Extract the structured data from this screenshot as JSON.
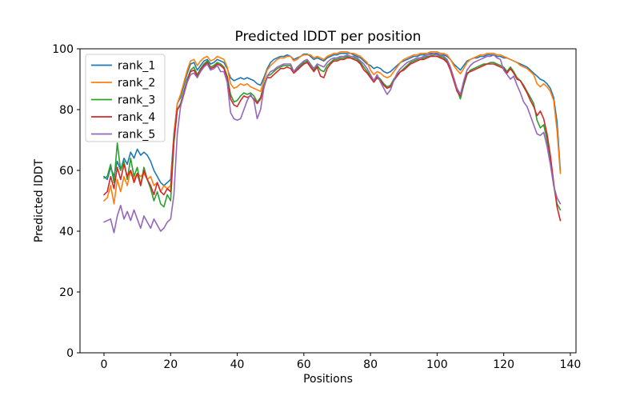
{
  "chart_data": {
    "type": "line",
    "title": "Predicted lDDT per position",
    "xlabel": "Positions",
    "ylabel": "Predicted lDDT",
    "xlim": [
      -7.2,
      141.7
    ],
    "ylim": [
      0,
      100
    ],
    "x_ticks": [
      0,
      20,
      40,
      60,
      80,
      100,
      120,
      140
    ],
    "y_ticks": [
      0,
      20,
      40,
      60,
      80,
      100
    ],
    "grid": false,
    "legend_position": "upper left",
    "x": [
      0,
      1,
      2,
      3,
      4,
      5,
      6,
      7,
      8,
      9,
      10,
      11,
      12,
      13,
      14,
      15,
      16,
      17,
      18,
      19,
      20,
      21,
      22,
      23,
      24,
      25,
      26,
      27,
      28,
      29,
      30,
      31,
      32,
      33,
      34,
      35,
      36,
      37,
      38,
      39,
      40,
      41,
      42,
      43,
      44,
      45,
      46,
      47,
      48,
      49,
      50,
      51,
      52,
      53,
      54,
      55,
      56,
      57,
      58,
      59,
      60,
      61,
      62,
      63,
      64,
      65,
      66,
      67,
      68,
      69,
      70,
      71,
      72,
      73,
      74,
      75,
      76,
      77,
      78,
      79,
      80,
      81,
      82,
      83,
      84,
      85,
      86,
      87,
      88,
      89,
      90,
      91,
      92,
      93,
      94,
      95,
      96,
      97,
      98,
      99,
      100,
      101,
      102,
      103,
      104,
      105,
      106,
      107,
      108,
      109,
      110,
      111,
      112,
      113,
      114,
      115,
      116,
      117,
      118,
      119,
      120,
      121,
      122,
      123,
      124,
      125,
      126,
      127,
      128,
      129,
      130,
      131,
      132,
      133,
      134,
      135,
      136,
      137
    ],
    "series": [
      {
        "name": "rank_1",
        "color": "#1f77b4",
        "values": [
          58,
          57,
          61,
          58,
          63,
          60,
          64,
          62,
          66,
          64,
          67,
          65,
          66,
          65,
          63,
          60,
          58,
          56,
          55,
          56,
          57,
          72,
          82,
          84,
          88,
          92,
          95,
          95.5,
          93,
          94.5,
          96,
          96.5,
          95,
          95.5,
          96.5,
          96,
          95.5,
          93.5,
          90.5,
          89.5,
          90,
          90.5,
          90,
          90.5,
          90,
          89.5,
          88.5,
          88,
          90.5,
          93.5,
          95.5,
          96.5,
          97,
          97.5,
          97.5,
          98,
          97.5,
          96.5,
          97,
          97.5,
          98.3,
          98.3,
          97.5,
          96.5,
          97,
          96.5,
          96,
          97,
          97.5,
          98,
          98,
          98.5,
          98.5,
          98.5,
          98.5,
          98,
          97.5,
          97,
          96,
          95,
          94.5,
          93.5,
          94,
          93.5,
          92.5,
          92,
          92.5,
          93.5,
          94.5,
          95.5,
          96,
          96.5,
          97,
          97.5,
          97.5,
          98,
          98,
          98.5,
          98.5,
          98.5,
          98.5,
          98,
          98,
          97.5,
          96.5,
          95,
          94,
          93,
          94.5,
          96,
          96.5,
          97,
          97,
          97.5,
          97.5,
          98,
          98,
          98,
          97.5,
          97.5,
          97,
          97,
          96.5,
          96,
          95.5,
          95,
          94.5,
          94,
          93,
          92,
          91,
          90,
          89.5,
          88.5,
          87,
          84,
          76,
          60
        ]
      },
      {
        "name": "rank_2",
        "color": "#ff7f0e",
        "values": [
          50,
          51,
          55,
          49,
          57,
          53,
          58,
          55,
          60,
          57,
          59,
          58,
          59,
          57,
          58,
          55,
          56,
          53,
          55,
          54,
          55,
          71,
          82,
          85,
          89,
          93,
          96,
          96.5,
          94.5,
          96,
          97,
          97.5,
          96,
          96.5,
          97.5,
          97,
          96.5,
          94,
          88.5,
          87,
          87.5,
          88.5,
          88,
          88.5,
          87.5,
          87,
          86.5,
          86,
          89.5,
          93,
          94.5,
          95.5,
          96.5,
          97,
          97,
          97.5,
          97.5,
          96,
          96.5,
          97.5,
          98,
          98,
          98,
          97,
          97.5,
          97,
          96.5,
          97.5,
          98,
          98.5,
          98.5,
          99,
          99,
          99,
          98.5,
          98.5,
          98,
          97.5,
          96.5,
          95.5,
          93,
          91.5,
          92.5,
          92,
          91,
          90.5,
          91,
          92.5,
          94,
          95.5,
          96.5,
          97,
          97.5,
          98,
          98,
          98.5,
          98.5,
          98.5,
          99,
          99,
          99,
          98.5,
          98.5,
          98,
          96.5,
          94.5,
          93,
          91.8,
          93.5,
          95.5,
          96.5,
          97,
          97.5,
          98,
          98,
          98.5,
          98.5,
          98.5,
          98,
          98,
          97.5,
          97,
          96.5,
          96,
          95.5,
          94.5,
          94,
          93.5,
          92.5,
          91.5,
          88.5,
          87.5,
          88.5,
          87.5,
          86,
          83,
          73,
          59
        ]
      },
      {
        "name": "rank_3",
        "color": "#2ca02c",
        "values": [
          57.5,
          58,
          62,
          56,
          69,
          60,
          63,
          57,
          64,
          58,
          61,
          55,
          61,
          57,
          54,
          50,
          53,
          49,
          48,
          52,
          50,
          69,
          80,
          82,
          86,
          90,
          93,
          94,
          91.5,
          93.5,
          95,
          96,
          94,
          94.5,
          95.5,
          95,
          94,
          91,
          85,
          82.5,
          83,
          84.5,
          85.5,
          85,
          85.5,
          84.5,
          82.5,
          84,
          88,
          91,
          91.5,
          92.5,
          93.5,
          94,
          94.5,
          94.5,
          94.5,
          92,
          93.5,
          94.5,
          95.5,
          96,
          94.5,
          93,
          94.5,
          93,
          92.5,
          94.5,
          95.5,
          96.5,
          96.5,
          97,
          97,
          97.5,
          97,
          97,
          96.5,
          95.5,
          94,
          92.5,
          91,
          89.5,
          91,
          90,
          88.5,
          87.5,
          88,
          90,
          91.5,
          92.5,
          93.5,
          94.5,
          95.5,
          96,
          96.5,
          96.5,
          97,
          97.5,
          97.5,
          98,
          98,
          97.5,
          97,
          96,
          93.5,
          90,
          86.5,
          83.5,
          88,
          91.5,
          93,
          93.5,
          94,
          94.5,
          95,
          95,
          95.5,
          95.5,
          95,
          94.5,
          94,
          92.5,
          94,
          92.5,
          90.5,
          89.5,
          88,
          86,
          84,
          82,
          76.5,
          74,
          75,
          70,
          63,
          55,
          49,
          47
        ]
      },
      {
        "name": "rank_4",
        "color": "#d62728",
        "values": [
          52,
          53,
          58,
          54,
          61,
          57,
          62,
          58,
          60,
          56,
          59,
          55,
          60,
          57,
          55,
          52,
          56,
          53,
          52,
          54,
          53,
          70,
          80,
          81.5,
          85.5,
          89.5,
          92.5,
          93,
          91,
          93,
          94.5,
          95.5,
          93.5,
          94,
          95,
          94.5,
          93.5,
          90.5,
          83.5,
          81.5,
          81,
          83,
          84.5,
          84,
          84.5,
          83.5,
          82,
          83.5,
          87.5,
          90.5,
          90.5,
          91.5,
          92.5,
          93.5,
          93.5,
          94,
          93.5,
          92,
          93,
          94,
          95,
          95.5,
          94,
          92.5,
          94,
          91,
          90.5,
          93.5,
          95,
          96,
          96,
          96.5,
          96.5,
          97,
          97,
          96.5,
          96,
          95,
          93,
          92,
          90.5,
          89,
          90.5,
          89.5,
          88,
          87,
          87.5,
          89.5,
          91,
          92.5,
          93,
          94,
          95,
          95.5,
          96,
          96.5,
          96.5,
          97,
          97.5,
          97.5,
          97.5,
          97,
          96.5,
          95.5,
          93,
          89.5,
          86,
          84.5,
          88.5,
          92,
          92.5,
          93,
          93.5,
          94,
          94.5,
          95,
          95,
          95,
          94.5,
          94,
          93.5,
          92,
          93.5,
          92,
          90,
          89.5,
          87.5,
          85.5,
          83,
          81,
          78,
          79.5,
          77,
          72,
          65,
          56,
          48,
          43.5
        ]
      },
      {
        "name": "rank_5",
        "color": "#9467bd",
        "values": [
          43,
          43.5,
          44,
          39.5,
          45,
          48.5,
          44,
          46.5,
          43.5,
          47,
          44,
          41,
          45,
          43,
          41,
          44,
          42,
          40,
          41,
          43,
          44,
          52,
          72,
          81,
          85,
          89,
          91.5,
          92,
          90.5,
          92.5,
          94,
          95,
          93,
          93.5,
          94.5,
          92.5,
          92.5,
          89,
          79,
          77,
          76.5,
          77,
          80,
          83,
          85,
          83,
          77,
          80,
          87,
          91,
          92.5,
          93,
          94,
          94.5,
          95,
          95,
          95,
          92.5,
          94,
          95,
          96,
          96.5,
          95,
          93.5,
          95,
          94.5,
          94,
          95.5,
          96.5,
          97,
          97,
          97.5,
          97.5,
          98,
          97.5,
          97.5,
          97,
          96,
          95,
          93.5,
          91.5,
          89.5,
          91.5,
          89,
          87,
          85,
          86.5,
          89.5,
          92,
          93.5,
          94.5,
          95.5,
          96,
          96.5,
          97,
          97,
          97.5,
          98,
          98,
          98.5,
          98,
          98,
          97.5,
          96.5,
          94,
          90.5,
          87,
          85,
          89.5,
          93,
          94.5,
          95.5,
          96,
          96.5,
          97,
          97.5,
          97.5,
          98,
          97,
          96.5,
          93,
          91.5,
          90,
          91,
          88,
          85.5,
          82.5,
          81,
          78,
          75,
          72,
          71.5,
          72.5,
          68,
          62,
          55,
          51,
          49
        ]
      }
    ]
  }
}
